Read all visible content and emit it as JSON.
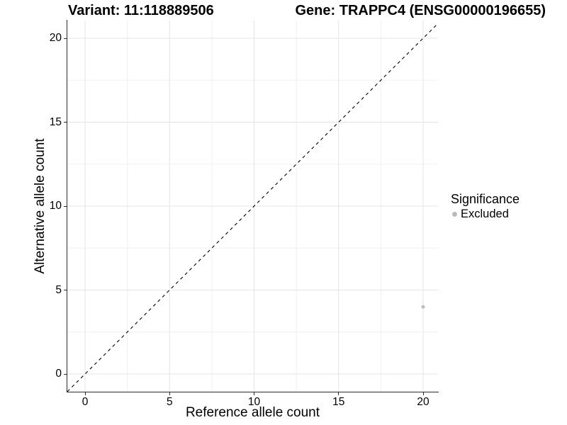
{
  "header": {
    "left_title": "Variant: 11:118889506",
    "right_title": "Gene: TRAPPC4 (ENSG00000196655)"
  },
  "chart_data": {
    "type": "scatter",
    "xlabel": "Reference allele count",
    "ylabel": "Alternative allele count",
    "xlim": [
      -1,
      21
    ],
    "ylim": [
      -1,
      21
    ],
    "x_ticks": [
      0,
      5,
      10,
      15,
      20
    ],
    "y_ticks": [
      0,
      5,
      10,
      15,
      20
    ],
    "x_minor_ticks": [
      2.5,
      7.5,
      12.5,
      17.5
    ],
    "y_minor_ticks": [
      2.5,
      7.5,
      12.5,
      17.5
    ],
    "grid": true,
    "points": [
      {
        "x": 20,
        "y": 4,
        "series": "Excluded"
      }
    ],
    "reference_line": {
      "type": "abline",
      "slope": 1,
      "intercept": 0,
      "style": "dashed",
      "color": "#000000"
    },
    "legend": {
      "title": "Significance",
      "position": "right",
      "entries": [
        {
          "label": "Excluded",
          "color": "#b9b9b9",
          "marker": "circle"
        }
      ]
    },
    "colors": {
      "point": "#c0c0c0",
      "major_grid": "#e4e4e4",
      "minor_grid": "#f0f0f0",
      "axis": "#2b2b2b",
      "text": "#000000"
    }
  }
}
